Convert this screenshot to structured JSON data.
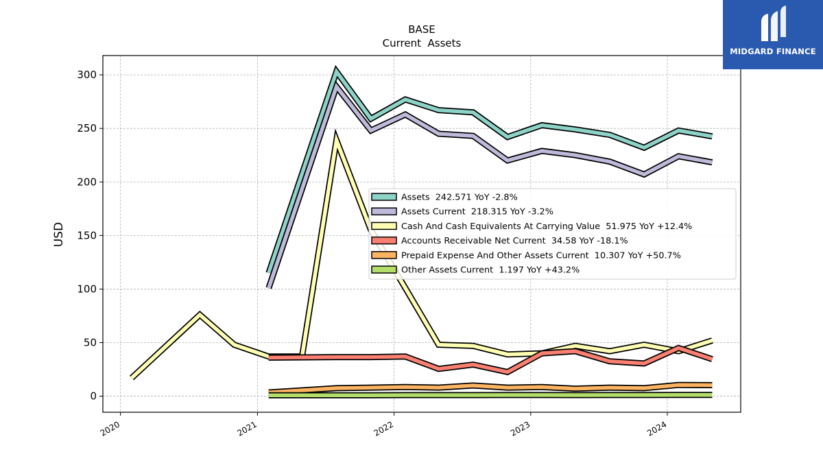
{
  "logo": {
    "text": "MIDGARD FINANCE",
    "bg_color": "#2a5ab0"
  },
  "chart_data": {
    "type": "line",
    "title": "BASE",
    "subtitle": "Current  Assets",
    "ylabel": "USD",
    "xlabel": "",
    "xlim": [
      "2019-11-15",
      "2024-07-15"
    ],
    "ylim": [
      -15,
      318
    ],
    "x_ticks": [
      "2020",
      "2021",
      "2022",
      "2023",
      "2024"
    ],
    "y_ticks": [
      0,
      50,
      100,
      150,
      200,
      250,
      300
    ],
    "grid": true,
    "legend_position": "center-right",
    "series": [
      {
        "name": "Assets  242.571 YoY -2.8%",
        "color": "#8dd3c7",
        "x": [
          "2021-01-31",
          "2021-07-31",
          "2021-10-31",
          "2022-01-31",
          "2022-04-30",
          "2022-07-31",
          "2022-10-31",
          "2023-01-31",
          "2023-04-30",
          "2023-07-31",
          "2023-10-31",
          "2024-01-31",
          "2024-04-30"
        ],
        "values": [
          115,
          303,
          259,
          277,
          267,
          265,
          242,
          253,
          249,
          244,
          232,
          248,
          242.571
        ]
      },
      {
        "name": "Assets Current  218.315 YoY -3.2%",
        "color": "#bebada",
        "x": [
          "2021-01-31",
          "2021-07-31",
          "2021-10-31",
          "2022-01-31",
          "2022-04-30",
          "2022-07-31",
          "2022-10-31",
          "2023-01-31",
          "2023-04-30",
          "2023-07-31",
          "2023-10-31",
          "2024-01-31",
          "2024-04-30"
        ],
        "values": [
          101,
          289,
          248,
          263,
          245,
          243,
          220,
          229,
          225,
          219,
          207,
          224,
          218.315
        ]
      },
      {
        "name": "Cash And Cash Equivalents At Carrying Value  51.975 YoY +12.4%",
        "color": "#ffffb3",
        "x": [
          "2020-01-31",
          "2020-07-31",
          "2020-10-31",
          "2021-01-31",
          "2021-04-30",
          "2021-07-31",
          "2021-10-31",
          "2022-01-31",
          "2022-04-30",
          "2022-07-31",
          "2022-10-31",
          "2023-01-31",
          "2023-04-30",
          "2023-07-31",
          "2023-10-31",
          "2024-01-31",
          "2024-04-30"
        ],
        "values": [
          17,
          76,
          48,
          37,
          37,
          239,
          155,
          101,
          48,
          47,
          39,
          40,
          47,
          42,
          48,
          42,
          51.975
        ]
      },
      {
        "name": "Accounts Receivable Net Current  34.58 YoY -18.1%",
        "color": "#fb8072",
        "x": [
          "2021-01-31",
          "2021-07-31",
          "2021-10-31",
          "2022-01-31",
          "2022-04-30",
          "2022-07-31",
          "2022-10-31",
          "2023-01-31",
          "2023-04-30",
          "2023-07-31",
          "2023-10-31",
          "2024-01-31",
          "2024-04-30"
        ],
        "values": [
          36,
          36.5,
          36.5,
          37,
          25.5,
          29.5,
          22.5,
          40,
          42,
          32.5,
          30.5,
          45,
          34.58
        ]
      },
      {
        "name": "Prepaid Expense And Other Assets Current  10.307 YoY +50.7%",
        "color": "#fdb462",
        "x": [
          "2021-01-31",
          "2021-07-31",
          "2021-10-31",
          "2022-01-31",
          "2022-04-30",
          "2022-07-31",
          "2022-10-31",
          "2023-01-31",
          "2023-04-30",
          "2023-07-31",
          "2023-10-31",
          "2024-01-31",
          "2024-04-30"
        ],
        "values": [
          3.5,
          7.5,
          8,
          8.5,
          8,
          10,
          8,
          8.5,
          7,
          8,
          7.5,
          10.5,
          10.307
        ]
      },
      {
        "name": "Other Assets Current  1.197 YoY +43.2%",
        "color": "#b3de69",
        "x": [
          "2021-01-31",
          "2021-07-31",
          "2021-10-31",
          "2022-01-31",
          "2022-04-30",
          "2022-07-31",
          "2022-10-31",
          "2023-01-31",
          "2023-04-30",
          "2023-07-31",
          "2023-10-31",
          "2024-01-31",
          "2024-04-30"
        ],
        "values": [
          0.8,
          0.8,
          0.9,
          1.0,
          1.0,
          1.0,
          1.1,
          1.1,
          1.0,
          1.1,
          1.1,
          1.2,
          1.197
        ]
      }
    ]
  }
}
